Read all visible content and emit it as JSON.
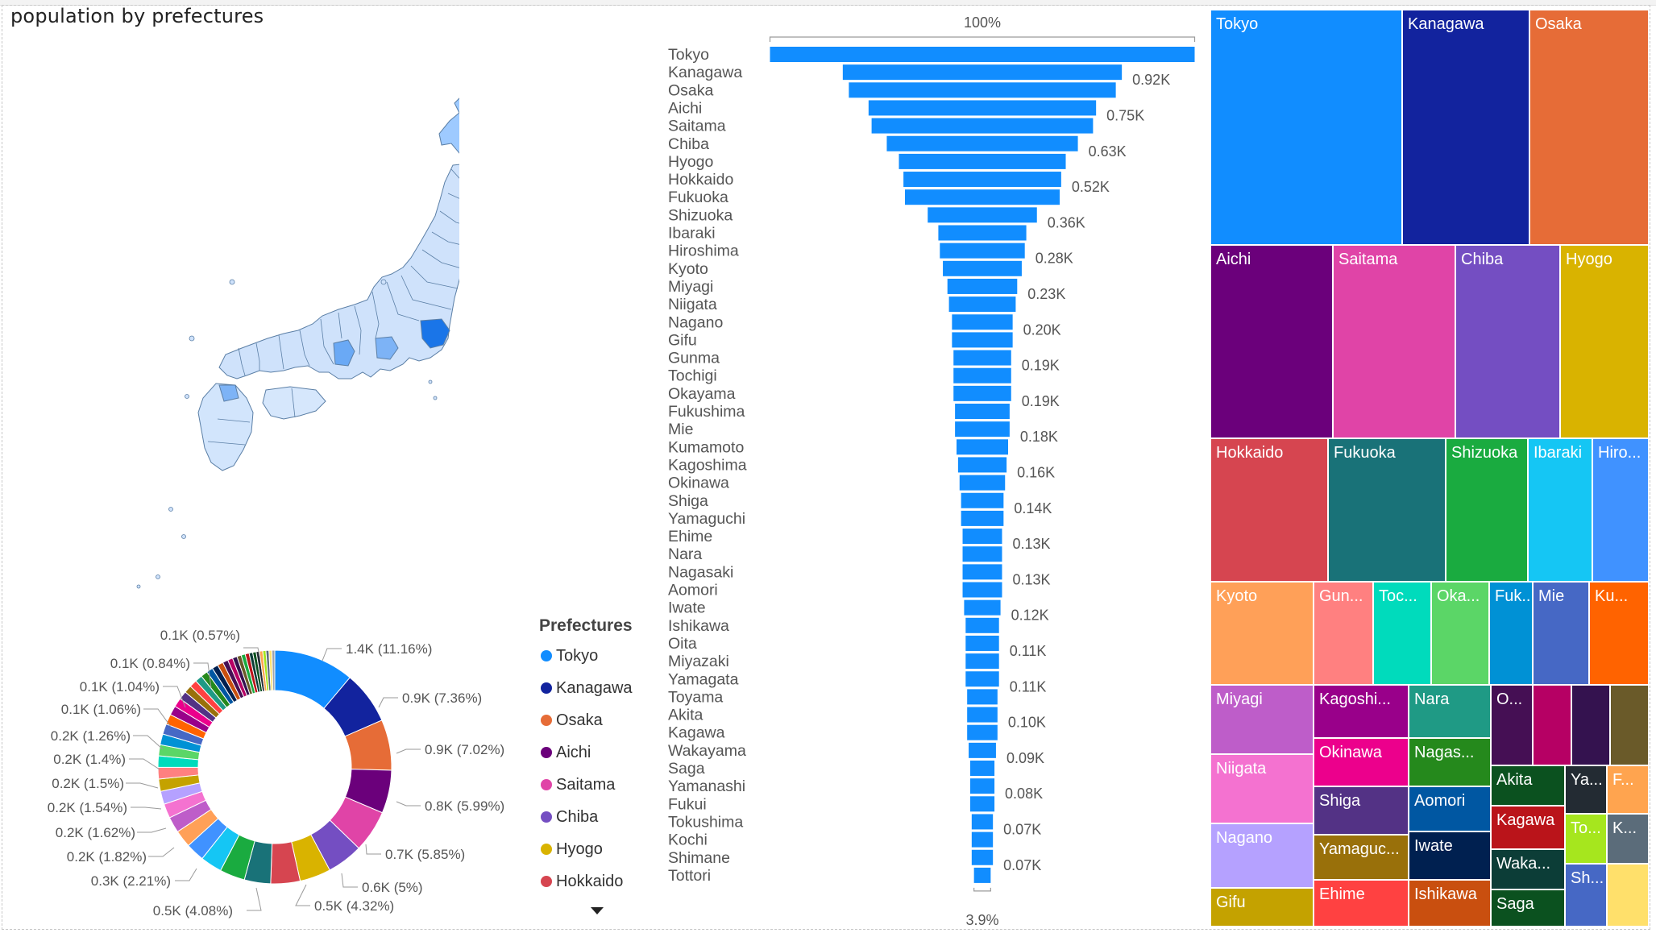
{
  "title": "population by prefectures",
  "legend": {
    "title": "Prefectures",
    "items": [
      {
        "name": "Tokyo",
        "color": "#118DFF"
      },
      {
        "name": "Kanagawa",
        "color": "#12239E"
      },
      {
        "name": "Osaka",
        "color": "#E66C37"
      },
      {
        "name": "Aichi",
        "color": "#6B007B"
      },
      {
        "name": "Saitama",
        "color": "#E044A7"
      },
      {
        "name": "Chiba",
        "color": "#744EC2"
      },
      {
        "name": "Hyogo",
        "color": "#D9B300"
      },
      {
        "name": "Hokkaido",
        "color": "#D64550"
      }
    ]
  },
  "map": {
    "visual": "choropleth of Japan prefectures",
    "high_color": "#1a75e8",
    "low_color": "#dbe9fb"
  },
  "chart_data": [
    {
      "type": "pie",
      "variant": "donut",
      "labels": [
        {
          "text": "1.4K (11.16%)",
          "value": 11.16
        },
        {
          "text": "0.9K (7.36%)",
          "value": 7.36
        },
        {
          "text": "0.9K (7.02%)",
          "value": 7.02
        },
        {
          "text": "0.8K (5.99%)",
          "value": 5.99
        },
        {
          "text": "0.7K (5.85%)",
          "value": 5.85
        },
        {
          "text": "0.6K (5%)",
          "value": 5.0
        },
        {
          "text": "0.5K (4.32%)",
          "value": 4.32
        },
        {
          "text": "0.5K (4.08%)",
          "value": 4.08
        },
        {
          "text": "0.3K (2.21%)",
          "value": 2.21
        },
        {
          "text": "0.2K (1.82%)",
          "value": 1.82
        },
        {
          "text": "0.2K (1.62%)",
          "value": 1.62
        },
        {
          "text": "0.2K (1.54%)",
          "value": 1.54
        },
        {
          "text": "0.2K (1.5%)",
          "value": 1.5
        },
        {
          "text": "0.2K (1.4%)",
          "value": 1.4
        },
        {
          "text": "0.2K (1.26%)",
          "value": 1.26
        },
        {
          "text": "0.1K (1.06%)",
          "value": 1.06
        },
        {
          "text": "0.1K (1.04%)",
          "value": 1.04
        },
        {
          "text": "0.1K (0.84%)",
          "value": 0.84
        },
        {
          "text": "0.1K (0.57%)",
          "value": 0.57
        }
      ],
      "slices": [
        11.16,
        7.36,
        7.02,
        5.99,
        5.85,
        5.0,
        4.32,
        4.08,
        3.65,
        3.5,
        3.0,
        2.6,
        2.4,
        2.21,
        2.0,
        1.82,
        1.7,
        1.62,
        1.58,
        1.54,
        1.5,
        1.45,
        1.4,
        1.3,
        1.26,
        1.15,
        1.06,
        1.04,
        1.0,
        0.95,
        0.9,
        0.84,
        0.8,
        0.75,
        0.7,
        0.65,
        0.6,
        0.57,
        0.55,
        0.5,
        0.48,
        0.46,
        0.45,
        0.44,
        0.42,
        0.4,
        0.4
      ],
      "colors": [
        "#118DFF",
        "#12239E",
        "#E66C37",
        "#6B007B",
        "#E044A7",
        "#744EC2",
        "#D9B300",
        "#D64550",
        "#197278",
        "#1AAB40",
        "#15C6F4",
        "#4092FF",
        "#FFA058",
        "#BE5DC9",
        "#F472D0",
        "#B5A1FF",
        "#C4A200",
        "#FF8080",
        "#00DBBC",
        "#5BD667",
        "#0091D5",
        "#4668C5",
        "#FF6300",
        "#99008A",
        "#EC008C",
        "#533285",
        "#99700A",
        "#FF4141",
        "#1F9A85",
        "#25891C",
        "#0057A2",
        "#002050",
        "#C94F0F",
        "#450F54",
        "#B60064",
        "#34124F",
        "#6A5A29",
        "#1AAB40",
        "#BA141A",
        "#0C3D37",
        "#0B511F",
        "#232B33",
        "#FFA44F",
        "#A6E61E",
        "#5B6C7A",
        "#FFE06B",
        "#9CA3AF"
      ]
    },
    {
      "type": "bar",
      "variant": "funnel",
      "top_label": "100%",
      "bottom_label": "3.9%",
      "categories": [
        "Tokyo",
        "Kanagawa",
        "Osaka",
        "Aichi",
        "Saitama",
        "Chiba",
        "Hyogo",
        "Hokkaido",
        "Fukuoka",
        "Shizuoka",
        "Ibaraki",
        "Hiroshima",
        "Kyoto",
        "Miyagi",
        "Niigata",
        "Nagano",
        "Gifu",
        "Gunma",
        "Tochigi",
        "Okayama",
        "Fukushima",
        "Mie",
        "Kumamoto",
        "Kagoshima",
        "Okinawa",
        "Shiga",
        "Yamaguchi",
        "Ehime",
        "Nara",
        "Nagasaki",
        "Aomori",
        "Iwate",
        "Ishikawa",
        "Oita",
        "Miyazaki",
        "Yamagata",
        "Toyama",
        "Akita",
        "Kagawa",
        "Wakayama",
        "Saga",
        "Yamanashi",
        "Fukui",
        "Tokushima",
        "Kochi",
        "Shimane",
        "Tottori"
      ],
      "values": [
        1.4,
        0.92,
        0.88,
        0.75,
        0.73,
        0.63,
        0.55,
        0.52,
        0.51,
        0.36,
        0.29,
        0.28,
        0.26,
        0.23,
        0.22,
        0.2,
        0.2,
        0.19,
        0.19,
        0.19,
        0.18,
        0.18,
        0.17,
        0.16,
        0.15,
        0.14,
        0.14,
        0.13,
        0.13,
        0.13,
        0.13,
        0.12,
        0.11,
        0.11,
        0.11,
        0.11,
        0.1,
        0.1,
        0.1,
        0.09,
        0.08,
        0.08,
        0.08,
        0.07,
        0.07,
        0.07,
        0.055
      ],
      "data_labels": {
        "1": "0.92K",
        "3": "0.75K",
        "5": "0.63K",
        "7": "0.52K",
        "9": "0.36K",
        "11": "0.28K",
        "13": "0.23K",
        "15": "0.20K",
        "17": "0.19K",
        "19": "0.19K",
        "21": "0.18K",
        "23": "0.16K",
        "25": "0.14K",
        "27": "0.13K",
        "29": "0.13K",
        "31": "0.12K",
        "33": "0.11K",
        "35": "0.11K",
        "37": "0.10K",
        "39": "0.09K",
        "41": "0.08K",
        "43": "0.07K",
        "45": "0.07K"
      },
      "bar_color": "#118DFF"
    },
    {
      "type": "treemap",
      "cells": [
        {
          "label": "Tokyo",
          "color": "#118DFF"
        },
        {
          "label": "Kanagawa",
          "color": "#12239E"
        },
        {
          "label": "Osaka",
          "color": "#E66C37"
        },
        {
          "label": "Aichi",
          "color": "#6B007B"
        },
        {
          "label": "Saitama",
          "color": "#E044A7"
        },
        {
          "label": "Chiba",
          "color": "#744EC2"
        },
        {
          "label": "Hyogo",
          "color": "#D9B300"
        },
        {
          "label": "Hokkaido",
          "color": "#D64550"
        },
        {
          "label": "Fukuoka",
          "color": "#197278"
        },
        {
          "label": "Shizuoka",
          "color": "#1AAB40"
        },
        {
          "label": "Ibaraki",
          "color": "#15C6F4"
        },
        {
          "label": "Hiro...",
          "color": "#4092FF"
        },
        {
          "label": "Kyoto",
          "color": "#FFA058"
        },
        {
          "label": "Gun...",
          "color": "#FF8080"
        },
        {
          "label": "Toc...",
          "color": "#00DBBC"
        },
        {
          "label": "Oka...",
          "color": "#5BD667"
        },
        {
          "label": "Fuk...",
          "color": "#0091D5"
        },
        {
          "label": "Mie",
          "color": "#4668C5"
        },
        {
          "label": "Ku...",
          "color": "#FF6300"
        },
        {
          "label": "Miyagi",
          "color": "#BE5DC9"
        },
        {
          "label": "Niigata",
          "color": "#F472D0"
        },
        {
          "label": "Nagano",
          "color": "#B5A1FF"
        },
        {
          "label": "Gifu",
          "color": "#C4A200"
        },
        {
          "label": "Kagoshi...",
          "color": "#99008A"
        },
        {
          "label": "Nara",
          "color": "#1F9A85"
        },
        {
          "label": "O...",
          "color": "#450F54"
        },
        {
          "label": "",
          "color": "#B60064"
        },
        {
          "label": "",
          "color": "#34124F"
        },
        {
          "label": "",
          "color": "#6A5A29"
        },
        {
          "label": "Okinawa",
          "color": "#EC008C"
        },
        {
          "label": "Nagas...",
          "color": "#25891C"
        },
        {
          "label": "Akita",
          "color": "#0B511F"
        },
        {
          "label": "Ya...",
          "color": "#232B33"
        },
        {
          "label": "F...",
          "color": "#FFA44F"
        },
        {
          "label": "Shiga",
          "color": "#533285"
        },
        {
          "label": "Aomori",
          "color": "#0057A2"
        },
        {
          "label": "Kagawa",
          "color": "#BA141A"
        },
        {
          "label": "To...",
          "color": "#A6E61E"
        },
        {
          "label": "K...",
          "color": "#5B6C7A"
        },
        {
          "label": "Yamaguc...",
          "color": "#99700A"
        },
        {
          "label": "Iwate",
          "color": "#002050"
        },
        {
          "label": "Waka...",
          "color": "#0C3D37"
        },
        {
          "label": "Ehime",
          "color": "#FF4141"
        },
        {
          "label": "Ishikawa",
          "color": "#C94F0F"
        },
        {
          "label": "Saga",
          "color": "#0B511F"
        },
        {
          "label": "Sh...",
          "color": "#4668C5"
        },
        {
          "label": "",
          "color": "#FFE06B"
        }
      ]
    }
  ]
}
